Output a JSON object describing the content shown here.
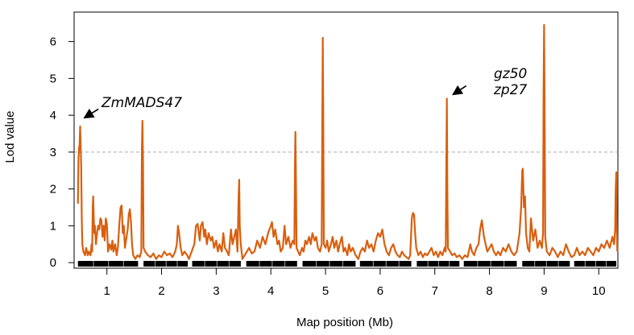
{
  "chart_data": {
    "type": "line",
    "xlabel": "Map position (Mb)",
    "ylabel": "Lod value",
    "xlim": [
      0.4,
      10.35
    ],
    "ylim": [
      -0.15,
      6.8
    ],
    "x_ticks": [
      1,
      2,
      3,
      4,
      5,
      6,
      7,
      8,
      9,
      10
    ],
    "y_ticks": [
      0,
      1,
      2,
      3,
      4,
      5,
      6
    ],
    "threshold": 3,
    "line_color": "#d95f0e",
    "threshold_color": "#aaaaaa",
    "grid": false,
    "chromosome_segments": [
      [
        0.47,
        1.57
      ],
      [
        1.67,
        2.48
      ],
      [
        2.56,
        3.45
      ],
      [
        3.55,
        4.48
      ],
      [
        4.58,
        5.55
      ],
      [
        5.63,
        6.57
      ],
      [
        6.67,
        7.45
      ],
      [
        7.53,
        8.5
      ],
      [
        8.6,
        9.47
      ],
      [
        9.55,
        10.32
      ]
    ],
    "peaks": [
      {
        "x": 0.51,
        "y": 3.7,
        "label": "ZmMADS47"
      },
      {
        "x": 1.65,
        "y": 3.85
      },
      {
        "x": 3.42,
        "y": 2.25
      },
      {
        "x": 4.45,
        "y": 3.55
      },
      {
        "x": 4.95,
        "y": 6.1
      },
      {
        "x": 7.22,
        "y": 4.45,
        "label": "gz50\nzp27"
      },
      {
        "x": 8.61,
        "y": 2.55
      },
      {
        "x": 9.0,
        "y": 6.45
      },
      {
        "x": 10.32,
        "y": 2.45
      }
    ],
    "annotations": [
      {
        "lines": [
          "ZmMADS47"
        ],
        "target_x": 0.52,
        "target_y": 3.95
      },
      {
        "lines": [
          "gz50",
          "zp27"
        ],
        "target_x": 7.25,
        "target_y": 4.45
      }
    ],
    "series": [
      {
        "values": [
          [
            0.47,
            1.6
          ],
          [
            0.48,
            2.8
          ],
          [
            0.49,
            3.1
          ],
          [
            0.5,
            3.2
          ],
          [
            0.51,
            3.7
          ],
          [
            0.52,
            3.2
          ],
          [
            0.53,
            2.6
          ],
          [
            0.54,
            1.2
          ],
          [
            0.55,
            0.5
          ],
          [
            0.57,
            0.3
          ],
          [
            0.6,
            0.2
          ],
          [
            0.62,
            0.4
          ],
          [
            0.65,
            0.2
          ],
          [
            0.67,
            0.3
          ],
          [
            0.7,
            0.2
          ],
          [
            0.72,
            0.5
          ],
          [
            0.73,
            0.3
          ],
          [
            0.74,
            1.5
          ],
          [
            0.75,
            1.8
          ],
          [
            0.76,
            1.2
          ],
          [
            0.77,
            0.8
          ],
          [
            0.78,
            1.0
          ],
          [
            0.8,
            0.5
          ],
          [
            0.82,
            0.8
          ],
          [
            0.84,
            1.0
          ],
          [
            0.86,
            0.9
          ],
          [
            0.88,
            1.2
          ],
          [
            0.9,
            1.15
          ],
          [
            0.92,
            0.7
          ],
          [
            0.94,
            1.0
          ],
          [
            0.96,
            0.6
          ],
          [
            0.98,
            1.2
          ],
          [
            1.0,
            1.05
          ],
          [
            1.02,
            0.3
          ],
          [
            1.05,
            0.5
          ],
          [
            1.08,
            0.35
          ],
          [
            1.1,
            0.6
          ],
          [
            1.12,
            0.3
          ],
          [
            1.15,
            0.5
          ],
          [
            1.18,
            0.2
          ],
          [
            1.2,
            0.4
          ],
          [
            1.23,
            1.1
          ],
          [
            1.25,
            1.5
          ],
          [
            1.27,
            1.55
          ],
          [
            1.29,
            0.8
          ],
          [
            1.31,
            1.0
          ],
          [
            1.33,
            0.4
          ],
          [
            1.35,
            0.6
          ],
          [
            1.38,
            0.9
          ],
          [
            1.4,
            1.3
          ],
          [
            1.42,
            1.45
          ],
          [
            1.44,
            1.1
          ],
          [
            1.46,
            0.5
          ],
          [
            1.48,
            0.2
          ],
          [
            1.52,
            0.1
          ],
          [
            1.56,
            0.2
          ],
          [
            1.6,
            0.15
          ],
          [
            1.63,
            0.3
          ],
          [
            1.64,
            3.0
          ],
          [
            1.65,
            3.85
          ],
          [
            1.66,
            2.8
          ],
          [
            1.67,
            0.4
          ],
          [
            1.7,
            0.3
          ],
          [
            1.75,
            0.2
          ],
          [
            1.8,
            0.15
          ],
          [
            1.85,
            0.25
          ],
          [
            1.9,
            0.1
          ],
          [
            1.95,
            0.2
          ],
          [
            2.0,
            0.15
          ],
          [
            2.05,
            0.3
          ],
          [
            2.1,
            0.2
          ],
          [
            2.15,
            0.25
          ],
          [
            2.2,
            0.15
          ],
          [
            2.25,
            0.3
          ],
          [
            2.28,
            0.5
          ],
          [
            2.3,
            1.0
          ],
          [
            2.32,
            0.8
          ],
          [
            2.35,
            0.4
          ],
          [
            2.38,
            0.2
          ],
          [
            2.42,
            0.3
          ],
          [
            2.47,
            0.2
          ],
          [
            2.5,
            0.1
          ],
          [
            2.55,
            0.3
          ],
          [
            2.6,
            0.5
          ],
          [
            2.63,
            1.0
          ],
          [
            2.66,
            1.05
          ],
          [
            2.7,
            0.6
          ],
          [
            2.72,
            1.0
          ],
          [
            2.75,
            1.1
          ],
          [
            2.78,
            0.7
          ],
          [
            2.8,
            0.9
          ],
          [
            2.83,
            0.5
          ],
          [
            2.86,
            0.8
          ],
          [
            2.9,
            0.6
          ],
          [
            2.93,
            0.7
          ],
          [
            2.96,
            0.4
          ],
          [
            3.0,
            0.6
          ],
          [
            3.03,
            0.3
          ],
          [
            3.06,
            0.5
          ],
          [
            3.1,
            0.3
          ],
          [
            3.13,
            0.8
          ],
          [
            3.16,
            0.4
          ],
          [
            3.2,
            0.3
          ],
          [
            3.23,
            0.2
          ],
          [
            3.27,
            0.9
          ],
          [
            3.3,
            0.5
          ],
          [
            3.33,
            0.7
          ],
          [
            3.36,
            0.9
          ],
          [
            3.39,
            0.3
          ],
          [
            3.41,
            1.8
          ],
          [
            3.42,
            2.25
          ],
          [
            3.43,
            1.0
          ],
          [
            3.45,
            0.5
          ],
          [
            3.48,
            0.1
          ],
          [
            3.52,
            0.2
          ],
          [
            3.56,
            0.3
          ],
          [
            3.6,
            0.4
          ],
          [
            3.65,
            0.25
          ],
          [
            3.7,
            0.3
          ],
          [
            3.75,
            0.6
          ],
          [
            3.8,
            0.4
          ],
          [
            3.85,
            0.7
          ],
          [
            3.9,
            0.5
          ],
          [
            3.95,
            0.8
          ],
          [
            4.0,
            1.0
          ],
          [
            4.02,
            1.1
          ],
          [
            4.05,
            0.7
          ],
          [
            4.08,
            0.9
          ],
          [
            4.12,
            0.5
          ],
          [
            4.15,
            0.6
          ],
          [
            4.18,
            0.3
          ],
          [
            4.22,
            0.4
          ],
          [
            4.25,
            1.0
          ],
          [
            4.28,
            0.5
          ],
          [
            4.32,
            0.7
          ],
          [
            4.36,
            0.4
          ],
          [
            4.4,
            0.6
          ],
          [
            4.43,
            0.5
          ],
          [
            4.44,
            2.6
          ],
          [
            4.45,
            3.55
          ],
          [
            4.46,
            2.2
          ],
          [
            4.47,
            0.4
          ],
          [
            4.5,
            0.3
          ],
          [
            4.53,
            0.2
          ],
          [
            4.57,
            0.4
          ],
          [
            4.6,
            0.3
          ],
          [
            4.63,
            0.6
          ],
          [
            4.66,
            0.5
          ],
          [
            4.7,
            0.7
          ],
          [
            4.73,
            0.5
          ],
          [
            4.76,
            0.8
          ],
          [
            4.8,
            0.6
          ],
          [
            4.83,
            0.7
          ],
          [
            4.86,
            0.4
          ],
          [
            4.9,
            0.3
          ],
          [
            4.93,
            0.5
          ],
          [
            4.94,
            3.5
          ],
          [
            4.95,
            6.1
          ],
          [
            4.96,
            3.8
          ],
          [
            4.97,
            0.5
          ],
          [
            5.0,
            0.4
          ],
          [
            5.03,
            0.6
          ],
          [
            5.06,
            0.3
          ],
          [
            5.1,
            0.5
          ],
          [
            5.13,
            0.7
          ],
          [
            5.16,
            0.4
          ],
          [
            5.2,
            0.6
          ],
          [
            5.23,
            0.3
          ],
          [
            5.26,
            0.5
          ],
          [
            5.3,
            0.7
          ],
          [
            5.33,
            0.3
          ],
          [
            5.36,
            0.4
          ],
          [
            5.4,
            0.2
          ],
          [
            5.43,
            0.5
          ],
          [
            5.46,
            0.3
          ],
          [
            5.5,
            0.4
          ],
          [
            5.55,
            0.2
          ],
          [
            5.6,
            0.1
          ],
          [
            5.64,
            0.3
          ],
          [
            5.68,
            0.4
          ],
          [
            5.72,
            0.3
          ],
          [
            5.76,
            0.6
          ],
          [
            5.8,
            0.4
          ],
          [
            5.84,
            0.5
          ],
          [
            5.88,
            0.3
          ],
          [
            5.92,
            0.6
          ],
          [
            5.96,
            0.8
          ],
          [
            6.0,
            0.7
          ],
          [
            6.04,
            0.9
          ],
          [
            6.08,
            0.5
          ],
          [
            6.12,
            0.3
          ],
          [
            6.16,
            0.2
          ],
          [
            6.2,
            0.4
          ],
          [
            6.24,
            0.5
          ],
          [
            6.28,
            0.3
          ],
          [
            6.32,
            0.2
          ],
          [
            6.36,
            0.15
          ],
          [
            6.4,
            0.3
          ],
          [
            6.44,
            0.2
          ],
          [
            6.48,
            0.15
          ],
          [
            6.52,
            0.1
          ],
          [
            6.55,
            0.2
          ],
          [
            6.58,
            1.2
          ],
          [
            6.6,
            1.35
          ],
          [
            6.62,
            1.3
          ],
          [
            6.64,
            0.8
          ],
          [
            6.66,
            0.4
          ],
          [
            6.7,
            0.2
          ],
          [
            6.74,
            0.3
          ],
          [
            6.78,
            0.15
          ],
          [
            6.82,
            0.25
          ],
          [
            6.86,
            0.2
          ],
          [
            6.9,
            0.3
          ],
          [
            6.94,
            0.4
          ],
          [
            6.98,
            0.2
          ],
          [
            7.02,
            0.3
          ],
          [
            7.06,
            0.15
          ],
          [
            7.1,
            0.3
          ],
          [
            7.14,
            0.2
          ],
          [
            7.18,
            0.4
          ],
          [
            7.2,
            0.3
          ],
          [
            7.21,
            2.5
          ],
          [
            7.22,
            4.45
          ],
          [
            7.23,
            2.0
          ],
          [
            7.24,
            0.4
          ],
          [
            7.28,
            0.3
          ],
          [
            7.32,
            0.2
          ],
          [
            7.36,
            0.25
          ],
          [
            7.4,
            0.15
          ],
          [
            7.45,
            0.2
          ],
          [
            7.5,
            0.1
          ],
          [
            7.55,
            0.2
          ],
          [
            7.6,
            0.15
          ],
          [
            7.65,
            0.5
          ],
          [
            7.68,
            0.3
          ],
          [
            7.72,
            0.2
          ],
          [
            7.76,
            0.4
          ],
          [
            7.8,
            0.5
          ],
          [
            7.83,
            0.9
          ],
          [
            7.86,
            1.15
          ],
          [
            7.9,
            0.7
          ],
          [
            7.93,
            0.5
          ],
          [
            7.96,
            0.3
          ],
          [
            8.0,
            0.4
          ],
          [
            8.04,
            0.5
          ],
          [
            8.08,
            0.3
          ],
          [
            8.12,
            0.2
          ],
          [
            8.16,
            0.3
          ],
          [
            8.2,
            0.2
          ],
          [
            8.25,
            0.4
          ],
          [
            8.3,
            0.3
          ],
          [
            8.35,
            0.5
          ],
          [
            8.4,
            0.3
          ],
          [
            8.45,
            0.2
          ],
          [
            8.5,
            0.3
          ],
          [
            8.55,
            0.8
          ],
          [
            8.58,
            1.5
          ],
          [
            8.6,
            2.5
          ],
          [
            8.61,
            2.55
          ],
          [
            8.63,
            1.5
          ],
          [
            8.65,
            1.8
          ],
          [
            8.67,
            0.8
          ],
          [
            8.7,
            0.4
          ],
          [
            8.73,
            0.3
          ],
          [
            8.76,
            1.2
          ],
          [
            8.8,
            0.6
          ],
          [
            8.84,
            0.9
          ],
          [
            8.88,
            0.4
          ],
          [
            8.92,
            0.6
          ],
          [
            8.96,
            0.4
          ],
          [
            8.98,
            0.8
          ],
          [
            8.99,
            4.5
          ],
          [
            9.0,
            6.45
          ],
          [
            9.01,
            4.0
          ],
          [
            9.02,
            0.7
          ],
          [
            9.05,
            0.3
          ],
          [
            9.1,
            0.2
          ],
          [
            9.15,
            0.4
          ],
          [
            9.2,
            0.3
          ],
          [
            9.25,
            0.15
          ],
          [
            9.3,
            0.3
          ],
          [
            9.35,
            0.2
          ],
          [
            9.4,
            0.5
          ],
          [
            9.45,
            0.3
          ],
          [
            9.5,
            0.15
          ],
          [
            9.55,
            0.2
          ],
          [
            9.6,
            0.4
          ],
          [
            9.65,
            0.2
          ],
          [
            9.7,
            0.3
          ],
          [
            9.75,
            0.2
          ],
          [
            9.8,
            0.4
          ],
          [
            9.85,
            0.3
          ],
          [
            9.9,
            0.2
          ],
          [
            9.95,
            0.4
          ],
          [
            10.0,
            0.3
          ],
          [
            10.05,
            0.5
          ],
          [
            10.1,
            0.4
          ],
          [
            10.15,
            0.6
          ],
          [
            10.2,
            0.4
          ],
          [
            10.25,
            0.7
          ],
          [
            10.28,
            0.5
          ],
          [
            10.3,
            0.9
          ],
          [
            10.31,
            2.0
          ],
          [
            10.32,
            2.45
          ],
          [
            10.33,
            1.0
          ],
          [
            10.34,
            0.3
          ]
        ]
      }
    ]
  }
}
